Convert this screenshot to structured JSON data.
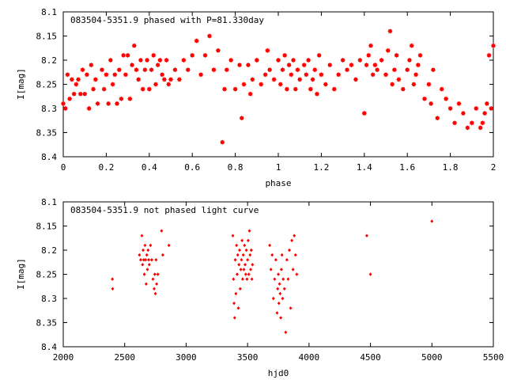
{
  "chart_data": [
    {
      "type": "scatter",
      "title": "083504-5351.9 phased with P=81.330day",
      "xlabel": "phase",
      "ylabel": "I[mag]",
      "xlim": [
        0,
        2
      ],
      "ylim": [
        8.1,
        8.4
      ],
      "y_inverted": true,
      "xticks": [
        "0",
        "0.2",
        "0.4",
        "0.6",
        "0.8",
        "1",
        "1.2",
        "1.4",
        "1.6",
        "1.8",
        "2"
      ],
      "yticks": [
        "8.1",
        "8.15",
        "8.2",
        "8.25",
        "8.3",
        "8.35",
        "8.4"
      ],
      "marker": "star",
      "color": "#ff0000",
      "x": [
        0.0,
        0.01,
        0.02,
        0.03,
        0.04,
        0.05,
        0.06,
        0.07,
        0.08,
        0.09,
        0.1,
        0.11,
        0.12,
        0.13,
        0.14,
        0.15,
        0.16,
        0.18,
        0.19,
        0.2,
        0.21,
        0.22,
        0.23,
        0.24,
        0.25,
        0.26,
        0.27,
        0.28,
        0.29,
        0.3,
        0.31,
        0.32,
        0.33,
        0.34,
        0.35,
        0.36,
        0.37,
        0.38,
        0.39,
        0.4,
        0.41,
        0.42,
        0.43,
        0.44,
        0.45,
        0.46,
        0.47,
        0.48,
        0.49,
        0.5,
        0.52,
        0.54,
        0.56,
        0.58,
        0.6,
        0.62,
        0.64,
        0.66,
        0.68,
        0.7,
        0.72,
        0.74,
        0.75,
        0.76,
        0.78,
        0.8,
        0.82,
        0.83,
        0.84,
        0.86,
        0.87,
        0.88,
        0.9,
        0.92,
        0.94,
        0.95,
        0.96,
        0.98,
        1.0,
        1.01,
        1.02,
        1.03,
        1.04,
        1.05,
        1.06,
        1.07,
        1.08,
        1.09,
        1.1,
        1.12,
        1.13,
        1.14,
        1.15,
        1.16,
        1.17,
        1.18,
        1.19,
        1.2,
        1.22,
        1.24,
        1.26,
        1.28,
        1.3,
        1.32,
        1.34,
        1.36,
        1.38,
        1.4,
        1.41,
        1.42,
        1.43,
        1.44,
        1.45,
        1.46,
        1.48,
        1.5,
        1.51,
        1.52,
        1.53,
        1.54,
        1.55,
        1.56,
        1.58,
        1.6,
        1.61,
        1.62,
        1.63,
        1.64,
        1.65,
        1.66,
        1.68,
        1.7,
        1.71,
        1.72,
        1.74,
        1.76,
        1.78,
        1.8,
        1.82,
        1.84,
        1.86,
        1.88,
        1.9,
        1.92,
        1.94,
        1.95,
        1.96,
        1.97,
        1.98,
        1.99,
        2.0
      ],
      "y": [
        8.29,
        8.3,
        8.23,
        8.28,
        8.24,
        8.27,
        8.25,
        8.24,
        8.27,
        8.22,
        8.27,
        8.23,
        8.3,
        8.21,
        8.26,
        8.24,
        8.29,
        8.22,
        8.26,
        8.23,
        8.29,
        8.2,
        8.25,
        8.23,
        8.29,
        8.22,
        8.28,
        8.19,
        8.23,
        8.19,
        8.28,
        8.21,
        8.17,
        8.22,
        8.24,
        8.2,
        8.26,
        8.22,
        8.2,
        8.26,
        8.22,
        8.19,
        8.25,
        8.21,
        8.2,
        8.23,
        8.24,
        8.2,
        8.25,
        8.24,
        8.22,
        8.24,
        8.2,
        8.22,
        8.19,
        8.16,
        8.23,
        8.19,
        8.15,
        8.22,
        8.18,
        8.37,
        8.26,
        8.22,
        8.2,
        8.26,
        8.21,
        8.32,
        8.25,
        8.21,
        8.27,
        8.24,
        8.2,
        8.25,
        8.23,
        8.18,
        8.22,
        8.24,
        8.2,
        8.25,
        8.22,
        8.19,
        8.26,
        8.21,
        8.23,
        8.2,
        8.26,
        8.22,
        8.24,
        8.21,
        8.23,
        8.2,
        8.26,
        8.24,
        8.22,
        8.27,
        8.19,
        8.23,
        8.25,
        8.21,
        8.26,
        8.23,
        8.2,
        8.22,
        8.21,
        8.24,
        8.2,
        8.31,
        8.21,
        8.19,
        8.17,
        8.23,
        8.21,
        8.22,
        8.2,
        8.23,
        8.18,
        8.14,
        8.25,
        8.22,
        8.19,
        8.24,
        8.26,
        8.22,
        8.2,
        8.17,
        8.25,
        8.23,
        8.21,
        8.19,
        8.28,
        8.25,
        8.29,
        8.22,
        8.32,
        8.26,
        8.28,
        8.3,
        8.33,
        8.29,
        8.31,
        8.34,
        8.33,
        8.3,
        8.34,
        8.33,
        8.31,
        8.29,
        8.19,
        8.3,
        8.17
      ],
      "data_labels": []
    },
    {
      "type": "scatter",
      "title": "083504-5351.9 not phased light curve",
      "xlabel": "hjd0",
      "ylabel": "I[mag]",
      "xlim": [
        2000,
        5500
      ],
      "ylim": [
        8.1,
        8.4
      ],
      "y_inverted": true,
      "xticks": [
        "2000",
        "2500",
        "3000",
        "3500",
        "4000",
        "4500",
        "5000",
        "5500"
      ],
      "yticks": [
        "8.1",
        "8.15",
        "8.2",
        "8.25",
        "8.3",
        "8.35",
        "8.4"
      ],
      "marker": "diamond",
      "color": "#ff0000",
      "x": [
        2400,
        2402,
        2620,
        2630,
        2640,
        2645,
        2650,
        2655,
        2660,
        2665,
        2670,
        2675,
        2680,
        2685,
        2690,
        2695,
        2700,
        2710,
        2720,
        2730,
        2740,
        2745,
        2750,
        2755,
        2760,
        2770,
        2800,
        2810,
        2860,
        3380,
        3385,
        3390,
        3395,
        3400,
        3405,
        3410,
        3415,
        3420,
        3425,
        3430,
        3435,
        3440,
        3445,
        3450,
        3455,
        3460,
        3465,
        3470,
        3475,
        3480,
        3485,
        3490,
        3495,
        3500,
        3505,
        3510,
        3515,
        3520,
        3525,
        3530,
        3535,
        3540,
        3680,
        3690,
        3700,
        3710,
        3720,
        3730,
        3740,
        3745,
        3750,
        3755,
        3760,
        3765,
        3770,
        3775,
        3780,
        3785,
        3790,
        3800,
        3810,
        3820,
        3830,
        3840,
        3850,
        3860,
        3870,
        3880,
        3890,
        3900,
        4470,
        4500,
        5000
      ],
      "y": [
        8.26,
        8.28,
        8.21,
        8.22,
        8.17,
        8.23,
        8.2,
        8.22,
        8.25,
        8.19,
        8.22,
        8.27,
        8.21,
        8.24,
        8.2,
        8.22,
        8.23,
        8.19,
        8.22,
        8.26,
        8.28,
        8.25,
        8.29,
        8.22,
        8.27,
        8.25,
        8.16,
        8.21,
        8.19,
        8.17,
        8.26,
        8.31,
        8.34,
        8.22,
        8.29,
        8.19,
        8.25,
        8.21,
        8.32,
        8.23,
        8.2,
        8.28,
        8.24,
        8.22,
        8.18,
        8.26,
        8.21,
        8.24,
        8.19,
        8.23,
        8.25,
        8.2,
        8.26,
        8.22,
        8.18,
        8.25,
        8.16,
        8.21,
        8.24,
        8.2,
        8.26,
        8.23,
        8.19,
        8.24,
        8.21,
        8.3,
        8.26,
        8.22,
        8.33,
        8.28,
        8.25,
        8.31,
        8.27,
        8.29,
        8.34,
        8.24,
        8.21,
        8.3,
        8.26,
        8.28,
        8.37,
        8.22,
        8.26,
        8.2,
        8.32,
        8.18,
        8.24,
        8.17,
        8.21,
        8.25,
        8.17,
        8.25,
        8.14
      ],
      "data_labels": []
    }
  ]
}
